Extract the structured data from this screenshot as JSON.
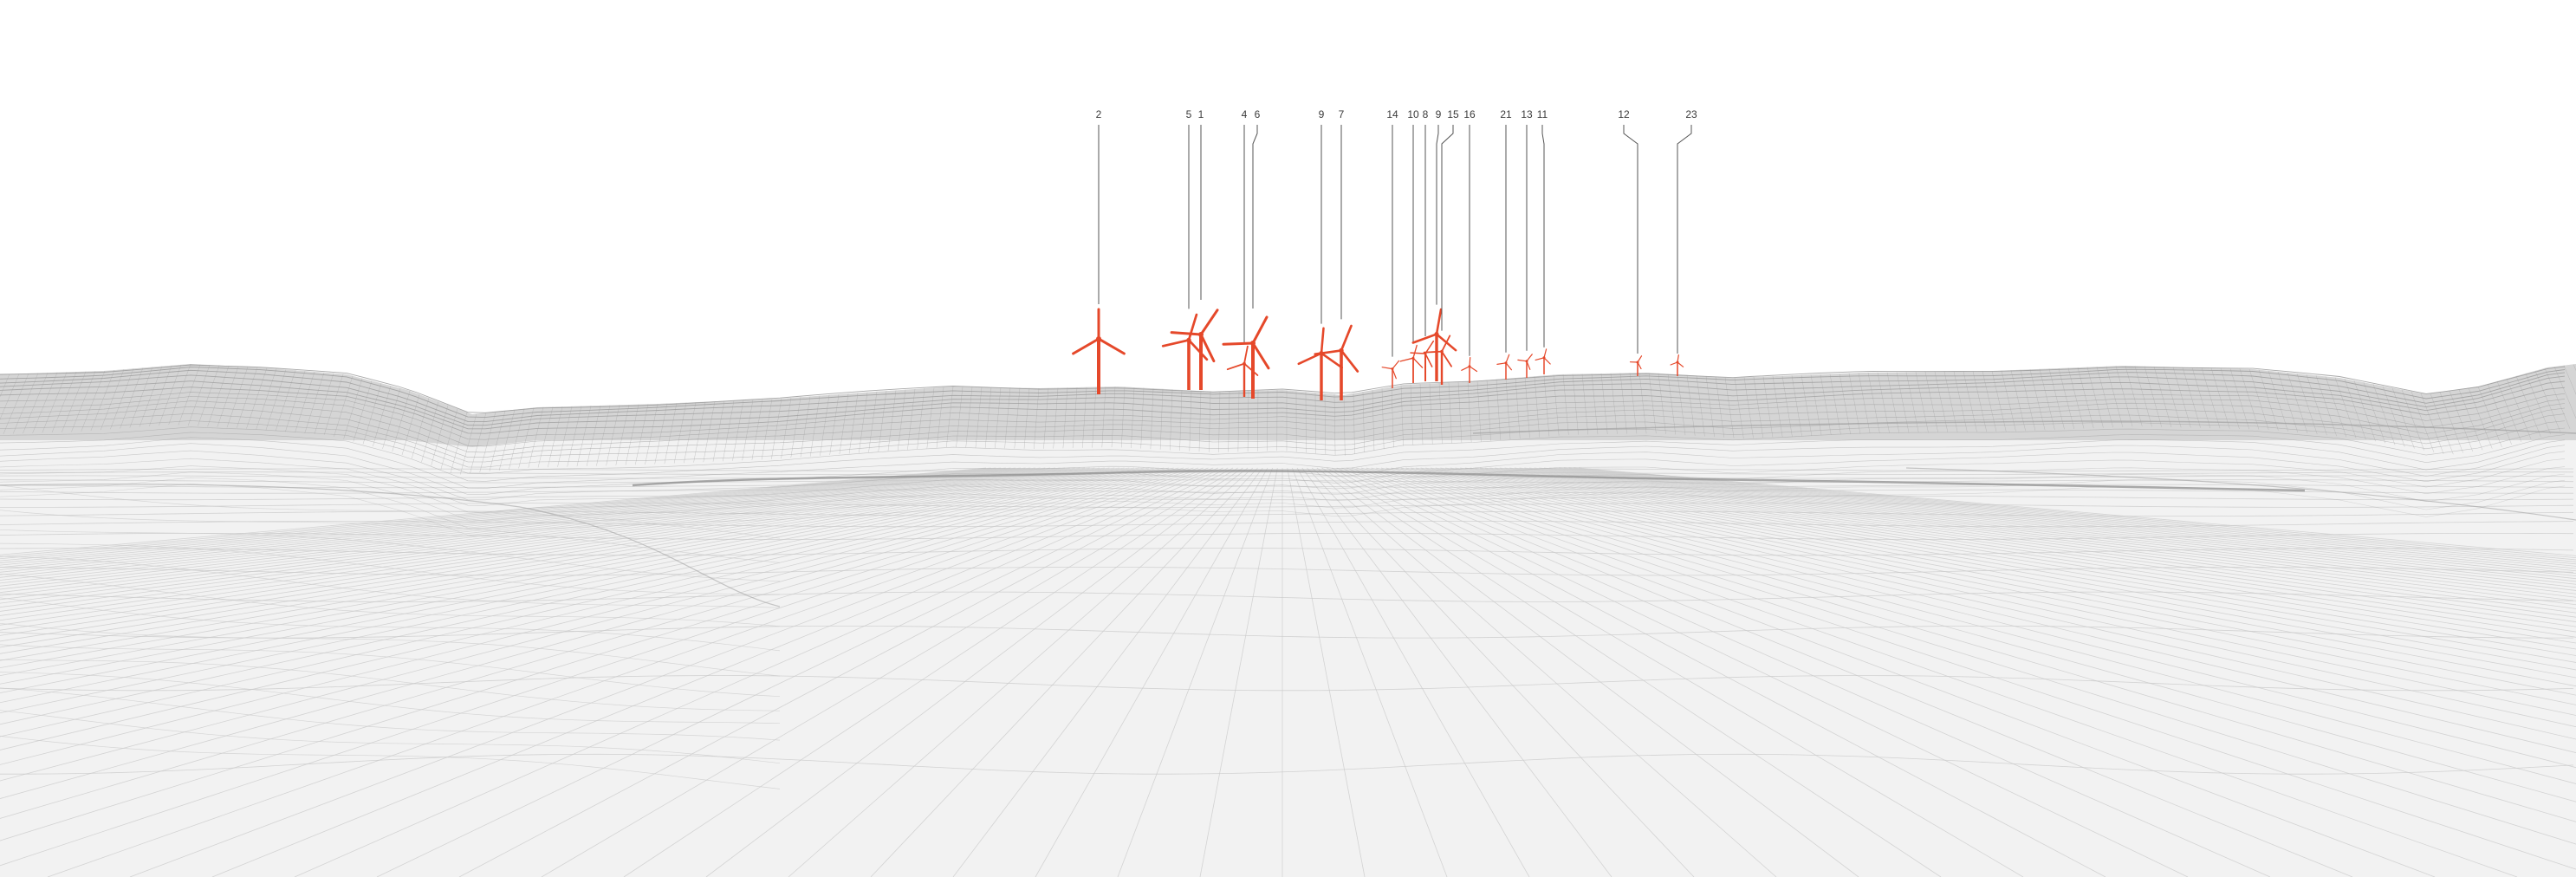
{
  "turbines": [
    {
      "id": "t-2",
      "label": "2"
    },
    {
      "id": "t-5",
      "label": "5"
    },
    {
      "id": "t-1",
      "label": "1"
    },
    {
      "id": "t-4",
      "label": "4"
    },
    {
      "id": "t-6",
      "label": "6"
    },
    {
      "id": "t-9",
      "label": "9"
    },
    {
      "id": "t-7",
      "label": "7"
    },
    {
      "id": "t-14",
      "label": "14"
    },
    {
      "id": "t-10",
      "label": "10"
    },
    {
      "id": "t-8",
      "label": "8"
    },
    {
      "id": "t-9b",
      "label": "9"
    },
    {
      "id": "t-15",
      "label": "15"
    },
    {
      "id": "t-16",
      "label": "16"
    },
    {
      "id": "t-21",
      "label": "21"
    },
    {
      "id": "t-13",
      "label": "13"
    },
    {
      "id": "t-11",
      "label": "11"
    },
    {
      "id": "t-12",
      "label": "12"
    },
    {
      "id": "t-23",
      "label": "23"
    }
  ],
  "colors": {
    "turbine": "#e5482a",
    "wireframe": "#9a9a9a",
    "wireframe_light": "#c9c9c9",
    "leader": "#555555",
    "label": "#3a3a3a",
    "background": "#ffffff"
  }
}
